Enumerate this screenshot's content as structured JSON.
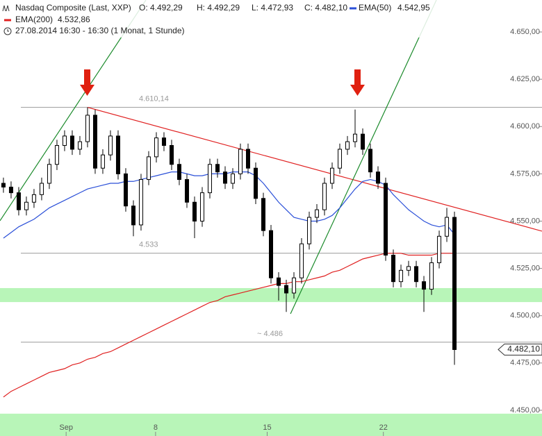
{
  "chart_data": {
    "type": "candlestick",
    "title": "Nasdaq Composite (Last, XXP)",
    "ohlc_labels": [
      "O: 4.492,29",
      "H: 4.492,29",
      "L: 4.472,93",
      "C: 4.482,10"
    ],
    "subtitle": "27.08.2014 16:30 - 16:30 (1 Monat, 1 Stunde)",
    "xlim": [
      -0.45,
      70.45
    ],
    "xticks": [
      {
        "value": 8.2,
        "label": "Sep"
      },
      {
        "value": 19.9,
        "label": "8"
      },
      {
        "value": 34.5,
        "label": "15"
      },
      {
        "value": 49.7,
        "label": "22"
      }
    ],
    "ylim": [
      4436.4,
      4666.9
    ],
    "yticks": [
      {
        "value": 4450,
        "label": "4.450,00"
      },
      {
        "value": 4475,
        "label": "4.475,00"
      },
      {
        "value": 4500,
        "label": "4.500,00"
      },
      {
        "value": 4525,
        "label": "4.525,00"
      },
      {
        "value": 4550,
        "label": "4.550,00"
      },
      {
        "value": 4575,
        "label": "4.575,00"
      },
      {
        "value": 4600,
        "label": "4.600,00"
      },
      {
        "value": 4625,
        "label": "4.625,00"
      },
      {
        "value": 4650,
        "label": "4.650,00"
      }
    ],
    "open": [
      4570,
      4568,
      4565,
      4556,
      4560,
      4564,
      4570,
      4580,
      4590,
      4595,
      4588,
      4592,
      4606,
      4578,
      4585,
      4595,
      4575,
      4558,
      4548,
      4572,
      4584,
      4594,
      4590,
      4580,
      4572,
      4560,
      4550,
      4565,
      4580,
      4576,
      4570,
      4575,
      4588,
      4578,
      4562,
      4545,
      4520,
      4516,
      4512,
      4520,
      4538,
      4552,
      4556,
      4570,
      4578,
      4588,
      4592,
      4596,
      4588,
      4576,
      4570,
      4532,
      4518,
      4524,
      4526,
      4518,
      4514,
      4528,
      4542,
      4552
    ],
    "high": [
      4573,
      4571,
      4568,
      4563,
      4567,
      4573,
      4583,
      4593,
      4598,
      4598,
      4595,
      4610.14,
      4609,
      4588,
      4598,
      4598,
      4578,
      4561,
      4575,
      4587,
      4597,
      4597,
      4593,
      4583,
      4575,
      4563,
      4568,
      4583,
      4583,
      4579,
      4578,
      4591,
      4591,
      4581,
      4565,
      4548,
      4523,
      4519,
      4523,
      4541,
      4555,
      4559,
      4573,
      4581,
      4591,
      4595,
      4609,
      4599,
      4591,
      4579,
      4573,
      4535,
      4527,
      4529,
      4529,
      4521,
      4531,
      4545,
      4557,
      4555
    ],
    "low": [
      4565,
      4562,
      4553,
      4553,
      4557,
      4561,
      4567,
      4577,
      4587,
      4585,
      4585,
      4589,
      4575,
      4575,
      4582,
      4572,
      4555,
      4542,
      4545,
      4569,
      4581,
      4587,
      4577,
      4569,
      4557,
      4541,
      4547,
      4562,
      4573,
      4567,
      4567,
      4572,
      4575,
      4559,
      4542,
      4517,
      4508,
      4502,
      4509,
      4517,
      4535,
      4549,
      4553,
      4567,
      4575,
      4585,
      4589,
      4585,
      4573,
      4567,
      4529,
      4515,
      4515,
      4521,
      4515,
      4502,
      4511,
      4525,
      4539,
      4474
    ],
    "close": [
      4568,
      4565,
      4556,
      4560,
      4564,
      4570,
      4580,
      4590,
      4595,
      4588,
      4592,
      4606,
      4578,
      4585,
      4595,
      4575,
      4558,
      4548,
      4572,
      4584,
      4594,
      4590,
      4580,
      4572,
      4560,
      4550,
      4565,
      4580,
      4576,
      4570,
      4575,
      4588,
      4578,
      4562,
      4545,
      4520,
      4516,
      4512,
      4520,
      4538,
      4552,
      4556,
      4570,
      4578,
      4588,
      4592,
      4596,
      4588,
      4576,
      4570,
      4532,
      4518,
      4524,
      4526,
      4518,
      4514,
      4528,
      4542,
      4552,
      4482.1
    ],
    "last_price": {
      "value": 4482.1,
      "label": "4.482,10"
    },
    "series": [
      {
        "name": "EMA(50)",
        "color": "#2a4fd8",
        "last_label": "4.542,95",
        "values": [
          4541,
          4544,
          4547,
          4549,
          4551,
          4554,
          4557,
          4559,
          4561,
          4563,
          4565,
          4567,
          4568,
          4569,
          4570,
          4570,
          4571,
          4571,
          4572,
          4573,
          4574,
          4575,
          4576,
          4576,
          4575,
          4574,
          4574,
          4575,
          4575,
          4575,
          4576,
          4576,
          4576,
          4574,
          4570,
          4565,
          4560,
          4556,
          4552,
          4551,
          4550,
          4550,
          4551,
          4553,
          4557,
          4562,
          4567,
          4571,
          4572,
          4571,
          4569,
          4564,
          4560,
          4556,
          4553,
          4550,
          4548,
          4547,
          4548,
          4543
        ]
      },
      {
        "name": "EMA(200)",
        "color": "#e02020",
        "last_label": "4.532,86",
        "values": [
          4457,
          4460,
          4462,
          4464,
          4466,
          4468,
          4470,
          4471,
          4472,
          4474,
          4475,
          4477,
          4478,
          4480,
          4481,
          4483,
          4485,
          4487,
          4489,
          4491,
          4493,
          4495,
          4497,
          4499,
          4501,
          4503,
          4505,
          4507,
          4508,
          4510,
          4511,
          4512,
          4513,
          4514,
          4515,
          4516,
          4517,
          4517,
          4518,
          4518,
          4519,
          4520,
          4521,
          4523,
          4524,
          4526,
          4528,
          4530,
          4531,
          4532,
          4533,
          4533,
          4533,
          4532,
          4532,
          4532,
          4532,
          4533,
          4533,
          4533
        ]
      }
    ],
    "levels": [
      {
        "value": 4610.14,
        "label": "4.610,14"
      },
      {
        "value": 4533,
        "label": "4.533"
      },
      {
        "value": 4486,
        "label": "~ 4.486"
      }
    ],
    "bands": [
      {
        "from": 4507.2,
        "to": 4514.6,
        "color": "#b8f5b8"
      },
      {
        "from": 4436.4,
        "to": 4448.2,
        "color": "#b8f5b8"
      }
    ],
    "trendlines": [
      {
        "color": "#e02020",
        "x": [
          11,
          70.45
        ],
        "y": [
          4610.14,
          4544.7
        ]
      },
      {
        "color": "#1a8a2a",
        "x": [
          -0.45,
          18.64
        ],
        "y": [
          4550.2,
          4666.9
        ]
      },
      {
        "color": "#1a8a2a",
        "x": [
          37.55,
          56.64
        ],
        "y": [
          4501,
          4666.9
        ]
      }
    ]
  }
}
